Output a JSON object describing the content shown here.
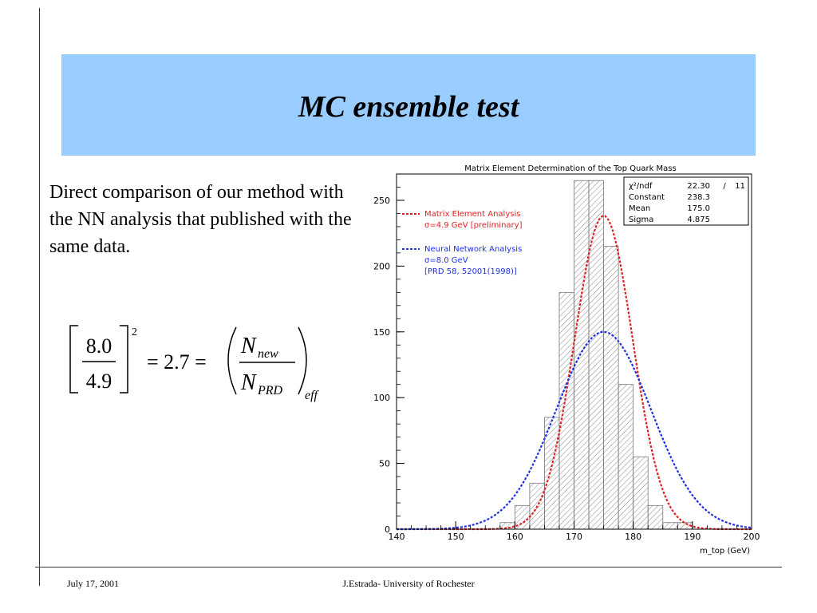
{
  "slide": {
    "title": "MC ensemble test",
    "body": "Direct comparison of our method with the NN analysis that published with the same data.",
    "footer_left": "July 17, 2001",
    "footer_center": "J.Estrada- University of Rochester"
  },
  "equation": {
    "frac_num": "8.0",
    "frac_den": "4.9",
    "exponent": "2",
    "equals_value": "= 2.7 =",
    "ratio_num_base": "N",
    "ratio_num_sub": "new",
    "ratio_den_base": "N",
    "ratio_den_sub": "PRD",
    "outer_sub": "eff"
  },
  "chart_data": {
    "type": "bar",
    "title": "Matrix Element Determination of the Top Quark Mass",
    "xlabel": "m_top (GeV)",
    "ylabel": "",
    "xlim": [
      140,
      200
    ],
    "ylim": [
      0,
      270
    ],
    "xticks": [
      "140",
      "150",
      "160",
      "170",
      "180",
      "190",
      "200"
    ],
    "yticks": [
      "0",
      "50",
      "100",
      "150",
      "200",
      "250"
    ],
    "bin_width": 2.5,
    "bin_edges": [
      140,
      142.5,
      145,
      147.5,
      150,
      152.5,
      155,
      157.5,
      160,
      162.5,
      165,
      167.5,
      170,
      172.5,
      175,
      177.5,
      180,
      182.5,
      185,
      187.5,
      190,
      192.5,
      195,
      197.5,
      200
    ],
    "values": [
      0,
      0,
      0,
      0,
      0,
      0,
      0,
      5,
      18,
      35,
      85,
      180,
      265,
      265,
      215,
      110,
      55,
      18,
      5,
      5,
      0,
      0,
      0,
      0
    ],
    "series": [
      {
        "name": "Matrix Element Analysis",
        "detail": "σ=4.9 GeV [preliminary]",
        "type": "gaussian",
        "mean": 175.0,
        "sigma": 4.9,
        "peak": 238.3,
        "color": "#e02020"
      },
      {
        "name": "Neural Network Analysis",
        "detail": "σ=8.0 GeV",
        "reference": "[PRD 58, 52001(1998)]",
        "type": "gaussian",
        "mean": 175.0,
        "sigma": 8.0,
        "peak": 150,
        "color": "#2030e0"
      }
    ],
    "stats": [
      [
        "χ²/ndf",
        "22.30",
        "/",
        "11"
      ],
      [
        "Constant",
        "238.3",
        "",
        ""
      ],
      [
        "Mean",
        "175.0",
        "",
        ""
      ],
      [
        "Sigma",
        "4.875",
        "",
        ""
      ]
    ],
    "legend_position": "top-left",
    "grid": false
  }
}
